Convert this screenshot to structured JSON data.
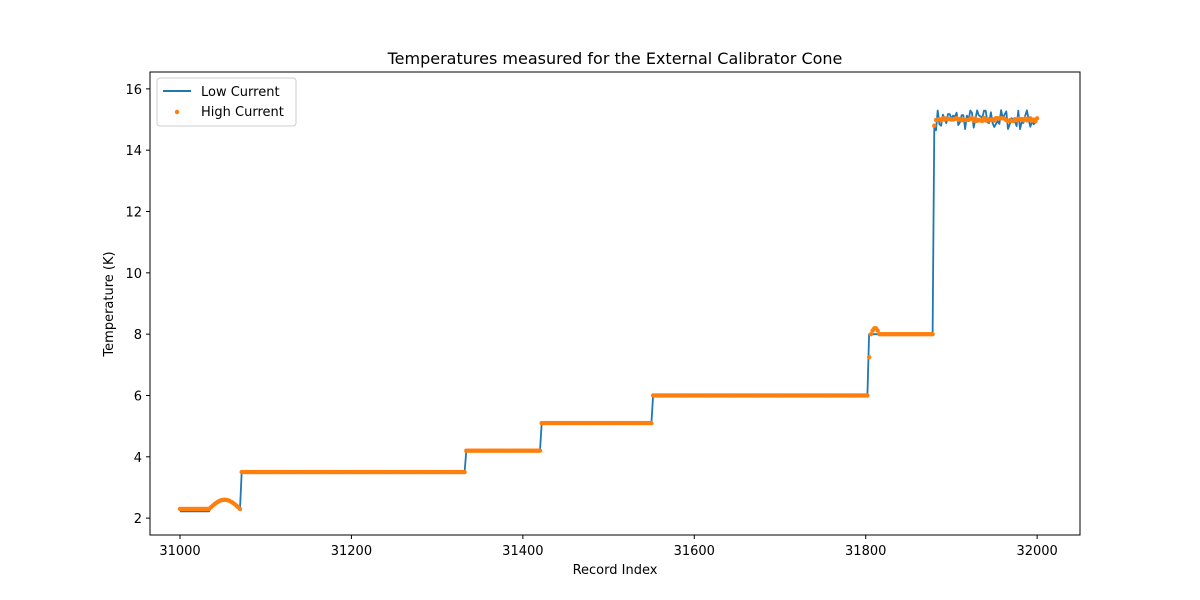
{
  "chart_data": {
    "type": "line",
    "title": "Temperatures measured for the External Calibrator Cone",
    "xlabel": "Record Index",
    "ylabel": "Temperature (K)",
    "xlim": [
      30965,
      32050
    ],
    "ylim": [
      1.45,
      16.55
    ],
    "xticks": [
      31000,
      31200,
      31400,
      31600,
      31800,
      32000
    ],
    "yticks": [
      2,
      4,
      6,
      8,
      10,
      12,
      14,
      16
    ],
    "grid": false,
    "legend_position": "top-left",
    "series": [
      {
        "name": "Low Current",
        "style": "line",
        "color": "#1f77b4",
        "segments": [
          {
            "from": 31000,
            "to": 31034,
            "level": 2.22
          },
          {
            "from": 31034,
            "to": 31070,
            "level": 2.3,
            "bump": 0.3
          },
          {
            "from": 31070,
            "to": 31333,
            "level": 3.5
          },
          {
            "from": 31333,
            "to": 31420,
            "level": 4.2
          },
          {
            "from": 31420,
            "to": 31550,
            "level": 5.1
          },
          {
            "from": 31550,
            "to": 31802,
            "level": 6.0
          },
          {
            "from": 31802,
            "to": 31878,
            "level": 8.0
          },
          {
            "from": 31878,
            "to": 32000,
            "level": 15.0,
            "noise": 0.35
          }
        ]
      },
      {
        "name": "High Current",
        "style": "scatter",
        "color": "#ff7f0e",
        "segments": [
          {
            "from": 31000,
            "to": 31034,
            "level": 2.3
          },
          {
            "from": 31034,
            "to": 31070,
            "level": 2.3,
            "bump": 0.3
          },
          {
            "from": 31070,
            "to": 31333,
            "level": 3.5
          },
          {
            "from": 31333,
            "to": 31420,
            "level": 4.2
          },
          {
            "from": 31420,
            "to": 31550,
            "level": 5.1
          },
          {
            "from": 31550,
            "to": 31802,
            "level": 6.0
          },
          {
            "from": 31802,
            "to": 31878,
            "level": 8.0,
            "overshoot": 0.2
          },
          {
            "from": 31878,
            "to": 32000,
            "level": 15.0,
            "noise": 0.05
          }
        ]
      }
    ]
  }
}
